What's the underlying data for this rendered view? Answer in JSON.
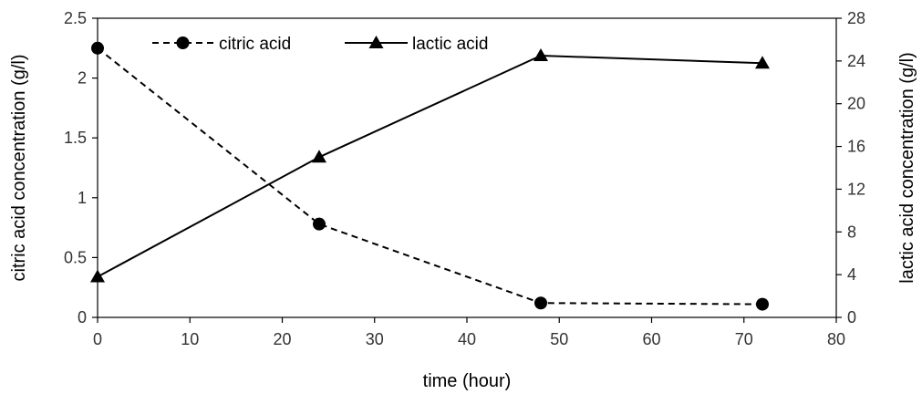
{
  "chart_data": {
    "type": "line",
    "xlabel": "time (hour)",
    "ylabel_left": "citric acid concentration (g/l)",
    "ylabel_right": "lactic acid concentration (g/l)",
    "xlim": [
      0,
      80
    ],
    "ylim_left": [
      0,
      2.5
    ],
    "ylim_right": [
      0,
      28
    ],
    "x_ticks": [
      0,
      10,
      20,
      30,
      40,
      50,
      60,
      70,
      80
    ],
    "x_tick_labels": [
      "0",
      "10",
      "20",
      "30",
      "40",
      "50",
      "60",
      "70",
      "80"
    ],
    "y_left_ticks": [
      0,
      0.5,
      1,
      1.5,
      2,
      2.5
    ],
    "y_left_tick_labels": [
      "0",
      "0.5",
      "1",
      "1.5",
      "2",
      "2.5"
    ],
    "y_right_ticks": [
      0,
      4,
      8,
      12,
      16,
      20,
      24,
      28
    ],
    "y_right_tick_labels": [
      "0",
      "4",
      "8",
      "12",
      "16",
      "20",
      "24",
      "28"
    ],
    "grid": false,
    "legend_position": "top-left",
    "series": [
      {
        "name": "citric acid",
        "axis": "left",
        "line_style": "dashed",
        "marker": "circle",
        "x": [
          0,
          24,
          48,
          72
        ],
        "y": [
          2.25,
          0.78,
          0.12,
          0.11
        ]
      },
      {
        "name": "lactic acid",
        "axis": "right",
        "line_style": "solid",
        "marker": "triangle",
        "x": [
          0,
          24,
          48,
          72
        ],
        "y": [
          3.8,
          15.0,
          24.5,
          23.8
        ]
      }
    ]
  }
}
